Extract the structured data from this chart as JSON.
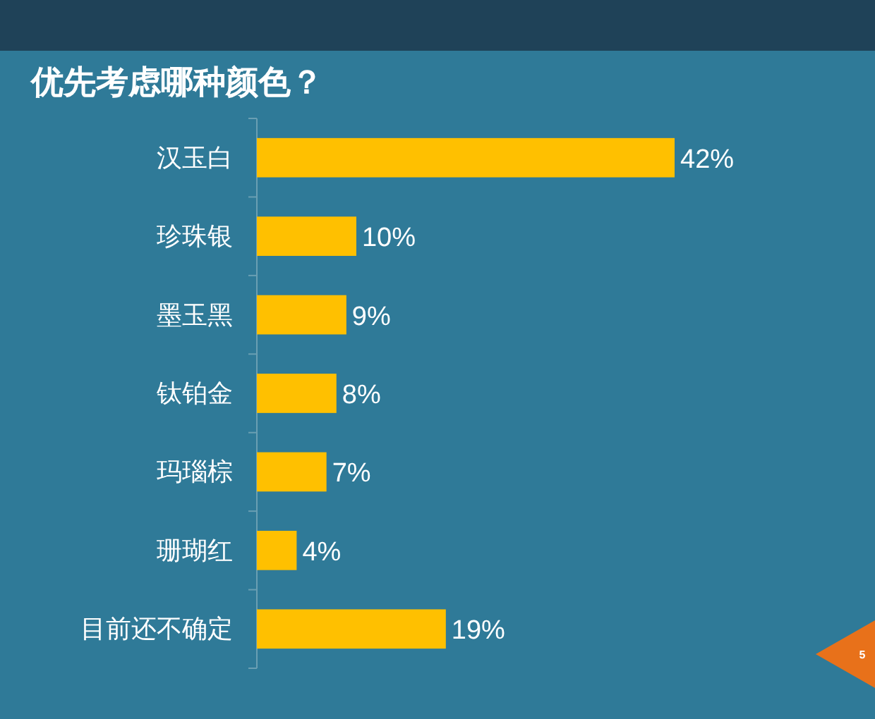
{
  "chart_data": {
    "type": "bar",
    "orientation": "horizontal",
    "title": "优先考虑哪种颜色？",
    "categories": [
      "汉玉白",
      "珍珠银",
      "墨玉黑",
      "钛铂金",
      "玛瑙棕",
      "珊瑚红",
      "目前还不确定"
    ],
    "values": [
      42,
      10,
      9,
      8,
      7,
      4,
      19
    ],
    "color": "#ffc000",
    "value_labels": [
      "42%",
      "10%",
      "9%",
      "8%",
      "7%",
      "4%",
      "19%"
    ],
    "tick_labels": "y",
    "annotations": [
      "5"
    ]
  }
}
